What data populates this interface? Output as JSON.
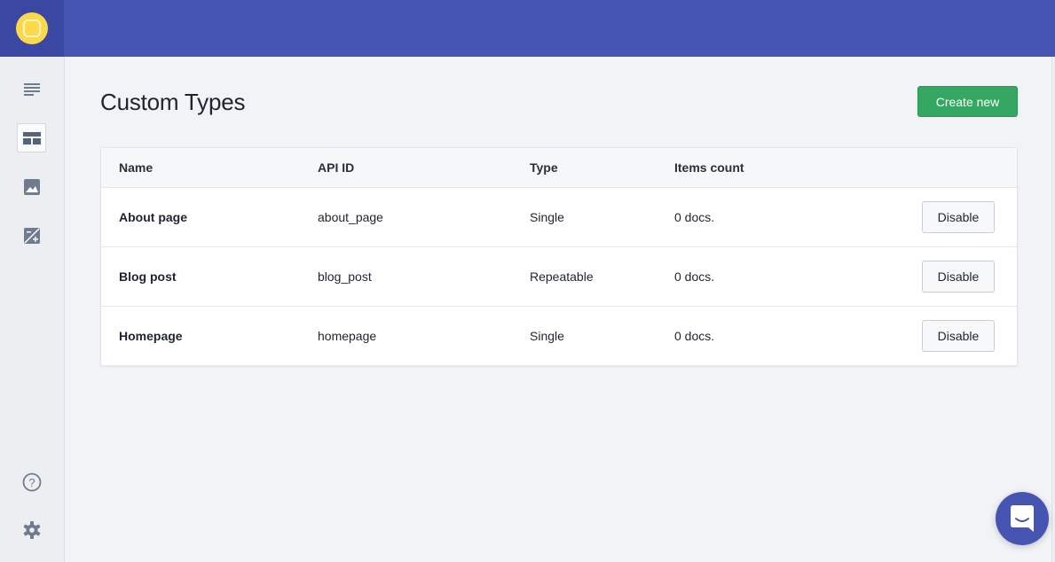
{
  "page": {
    "title": "Custom Types",
    "create_label": "Create new"
  },
  "colors": {
    "topbar": "#4655b1",
    "logo": "#fcd94b",
    "create": "#34a862"
  },
  "sidebar": {
    "items": [
      {
        "icon": "list-icon"
      },
      {
        "icon": "layout-icon",
        "active": true
      },
      {
        "icon": "image-icon"
      },
      {
        "icon": "image-edit-icon"
      }
    ],
    "bottom": [
      {
        "icon": "help-icon"
      },
      {
        "icon": "gear-icon"
      }
    ]
  },
  "table": {
    "headers": [
      "Name",
      "API ID",
      "Type",
      "Items count"
    ],
    "rows": [
      {
        "name": "About page",
        "api_id": "about_page",
        "type": "Single",
        "count": "0 docs.",
        "action": "Disable"
      },
      {
        "name": "Blog post",
        "api_id": "blog_post",
        "type": "Repeatable",
        "count": "0 docs.",
        "action": "Disable"
      },
      {
        "name": "Homepage",
        "api_id": "homepage",
        "type": "Single",
        "count": "0 docs.",
        "action": "Disable"
      }
    ]
  }
}
